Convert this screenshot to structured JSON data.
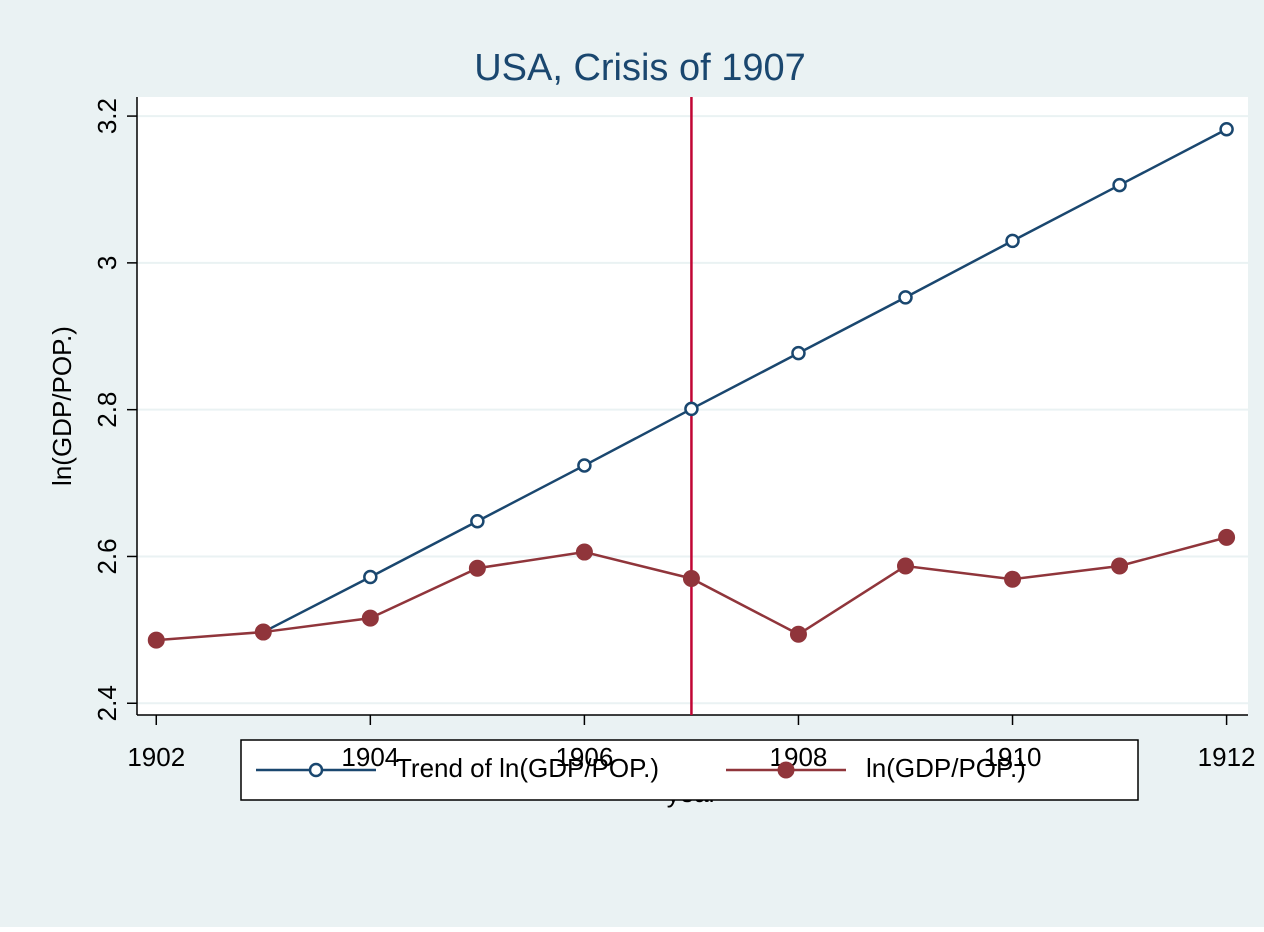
{
  "chart_data": {
    "type": "line",
    "title": "USA, Crisis of 1907",
    "x_label": "year",
    "y_label": "ln(GDP/POP.)",
    "x": [
      1902,
      1903,
      1904,
      1905,
      1906,
      1907,
      1908,
      1909,
      1910,
      1911,
      1912
    ],
    "series": [
      {
        "name": "Trend of ln(GDP/POP.)",
        "color": "#1a476f",
        "marker": "hollow-circle",
        "values": [
          null,
          2.497,
          2.572,
          2.648,
          2.724,
          2.801,
          2.877,
          2.953,
          3.03,
          3.106,
          3.182
        ]
      },
      {
        "name": "ln(GDP/POP.)",
        "color": "#90353b",
        "marker": "filled-circle",
        "values": [
          2.486,
          2.497,
          2.516,
          2.584,
          2.606,
          2.57,
          2.494,
          2.587,
          2.569,
          2.587,
          2.626
        ]
      }
    ],
    "xline": 1907,
    "xline_color": "#c10534",
    "xlim": [
      1901.82,
      1912.2
    ],
    "xticks": [
      1902,
      1904,
      1906,
      1908,
      1910,
      1912
    ],
    "ylim": [
      2.384,
      3.226
    ],
    "yticks": [
      2.4,
      2.6,
      2.8,
      3,
      3.2
    ],
    "grid": true,
    "legend": "bottom"
  }
}
